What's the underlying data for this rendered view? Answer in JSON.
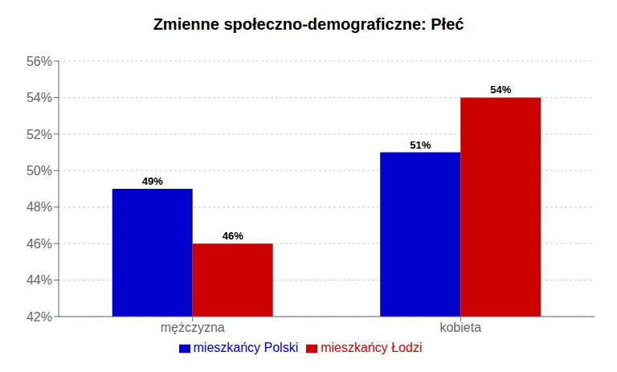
{
  "chart_data": {
    "type": "bar",
    "title": "Zmienne społeczno-demograficzne: Płeć",
    "categories": [
      "mężczyzna",
      "kobieta"
    ],
    "series": [
      {
        "name": "mieszkańcy Polski",
        "color": "#0000cc",
        "values": [
          49,
          51
        ],
        "value_labels": [
          "49%",
          "51%"
        ]
      },
      {
        "name": "mieszkańcy Łodzi",
        "color": "#cc0000",
        "values": [
          46,
          54
        ],
        "value_labels": [
          "46%",
          "54%"
        ]
      }
    ],
    "ylim": [
      42,
      56
    ],
    "yticks": [
      {
        "value": 42,
        "label": "42%"
      },
      {
        "value": 44,
        "label": "44%"
      },
      {
        "value": 46,
        "label": "46%"
      },
      {
        "value": 48,
        "label": "48%"
      },
      {
        "value": 50,
        "label": "50%"
      },
      {
        "value": 52,
        "label": "52%"
      },
      {
        "value": 54,
        "label": "54%"
      },
      {
        "value": 56,
        "label": "56%"
      }
    ],
    "grid": true,
    "legend": "bottom",
    "data_labels": true
  }
}
